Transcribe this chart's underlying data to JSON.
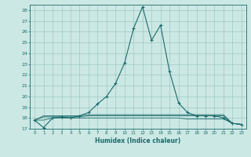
{
  "title": "",
  "xlabel": "Humidex (Indice chaleur)",
  "ylabel": "",
  "background_color": "#cce8e4",
  "grid_color": "#9dc8c4",
  "line_color": "#1a6b6b",
  "xlim": [
    -0.5,
    23.5
  ],
  "ylim": [
    17,
    28.5
  ],
  "yticks": [
    17,
    18,
    19,
    20,
    21,
    22,
    23,
    24,
    25,
    26,
    27,
    28
  ],
  "xticks": [
    0,
    1,
    2,
    3,
    4,
    5,
    6,
    7,
    8,
    9,
    10,
    11,
    12,
    13,
    14,
    15,
    16,
    17,
    18,
    19,
    20,
    21,
    22,
    23
  ],
  "main_series": [
    [
      0,
      17.8
    ],
    [
      1,
      17.1
    ],
    [
      2,
      18.0
    ],
    [
      3,
      18.1
    ],
    [
      4,
      18.0
    ],
    [
      5,
      18.2
    ],
    [
      6,
      18.5
    ],
    [
      7,
      19.3
    ],
    [
      8,
      20.0
    ],
    [
      9,
      21.2
    ],
    [
      10,
      23.1
    ],
    [
      11,
      26.3
    ],
    [
      12,
      28.3
    ],
    [
      13,
      25.2
    ],
    [
      14,
      26.6
    ],
    [
      15,
      22.3
    ],
    [
      16,
      19.4
    ],
    [
      17,
      18.5
    ],
    [
      18,
      18.2
    ],
    [
      19,
      18.2
    ],
    [
      20,
      18.2
    ],
    [
      21,
      18.0
    ],
    [
      22,
      17.5
    ],
    [
      23,
      17.4
    ]
  ],
  "flat_series1": [
    [
      0,
      17.8
    ],
    [
      1,
      17.8
    ],
    [
      2,
      18.0
    ],
    [
      3,
      18.0
    ],
    [
      4,
      18.0
    ],
    [
      5,
      18.0
    ],
    [
      6,
      18.0
    ],
    [
      7,
      18.0
    ],
    [
      8,
      18.0
    ],
    [
      9,
      18.0
    ],
    [
      10,
      18.0
    ],
    [
      11,
      18.0
    ],
    [
      12,
      18.0
    ],
    [
      13,
      18.0
    ],
    [
      14,
      18.0
    ],
    [
      15,
      18.0
    ],
    [
      16,
      18.0
    ],
    [
      17,
      17.9
    ],
    [
      18,
      17.9
    ],
    [
      19,
      17.9
    ],
    [
      20,
      17.9
    ],
    [
      21,
      17.9
    ],
    [
      22,
      17.5
    ],
    [
      23,
      17.4
    ]
  ],
  "flat_series2": [
    [
      0,
      17.8
    ],
    [
      1,
      18.1
    ],
    [
      2,
      18.1
    ],
    [
      3,
      18.1
    ],
    [
      4,
      18.1
    ],
    [
      5,
      18.1
    ],
    [
      6,
      18.2
    ],
    [
      7,
      18.2
    ],
    [
      8,
      18.2
    ],
    [
      9,
      18.2
    ],
    [
      10,
      18.2
    ],
    [
      11,
      18.2
    ],
    [
      12,
      18.2
    ],
    [
      13,
      18.2
    ],
    [
      14,
      18.2
    ],
    [
      15,
      18.2
    ],
    [
      16,
      18.2
    ],
    [
      17,
      18.2
    ],
    [
      18,
      18.2
    ],
    [
      19,
      18.2
    ],
    [
      20,
      18.2
    ],
    [
      21,
      18.2
    ],
    [
      22,
      17.5
    ],
    [
      23,
      17.4
    ]
  ],
  "flat_series3": [
    [
      0,
      17.8
    ],
    [
      1,
      18.2
    ],
    [
      2,
      18.2
    ],
    [
      3,
      18.2
    ],
    [
      4,
      18.2
    ],
    [
      5,
      18.2
    ],
    [
      6,
      18.3
    ],
    [
      7,
      18.3
    ],
    [
      8,
      18.3
    ],
    [
      9,
      18.3
    ],
    [
      10,
      18.3
    ],
    [
      11,
      18.3
    ],
    [
      12,
      18.3
    ],
    [
      13,
      18.3
    ],
    [
      14,
      18.3
    ],
    [
      15,
      18.3
    ],
    [
      16,
      18.3
    ],
    [
      17,
      18.3
    ],
    [
      18,
      18.3
    ],
    [
      19,
      18.3
    ],
    [
      20,
      18.3
    ],
    [
      21,
      18.3
    ],
    [
      22,
      17.5
    ],
    [
      23,
      17.4
    ]
  ],
  "marker": "+"
}
